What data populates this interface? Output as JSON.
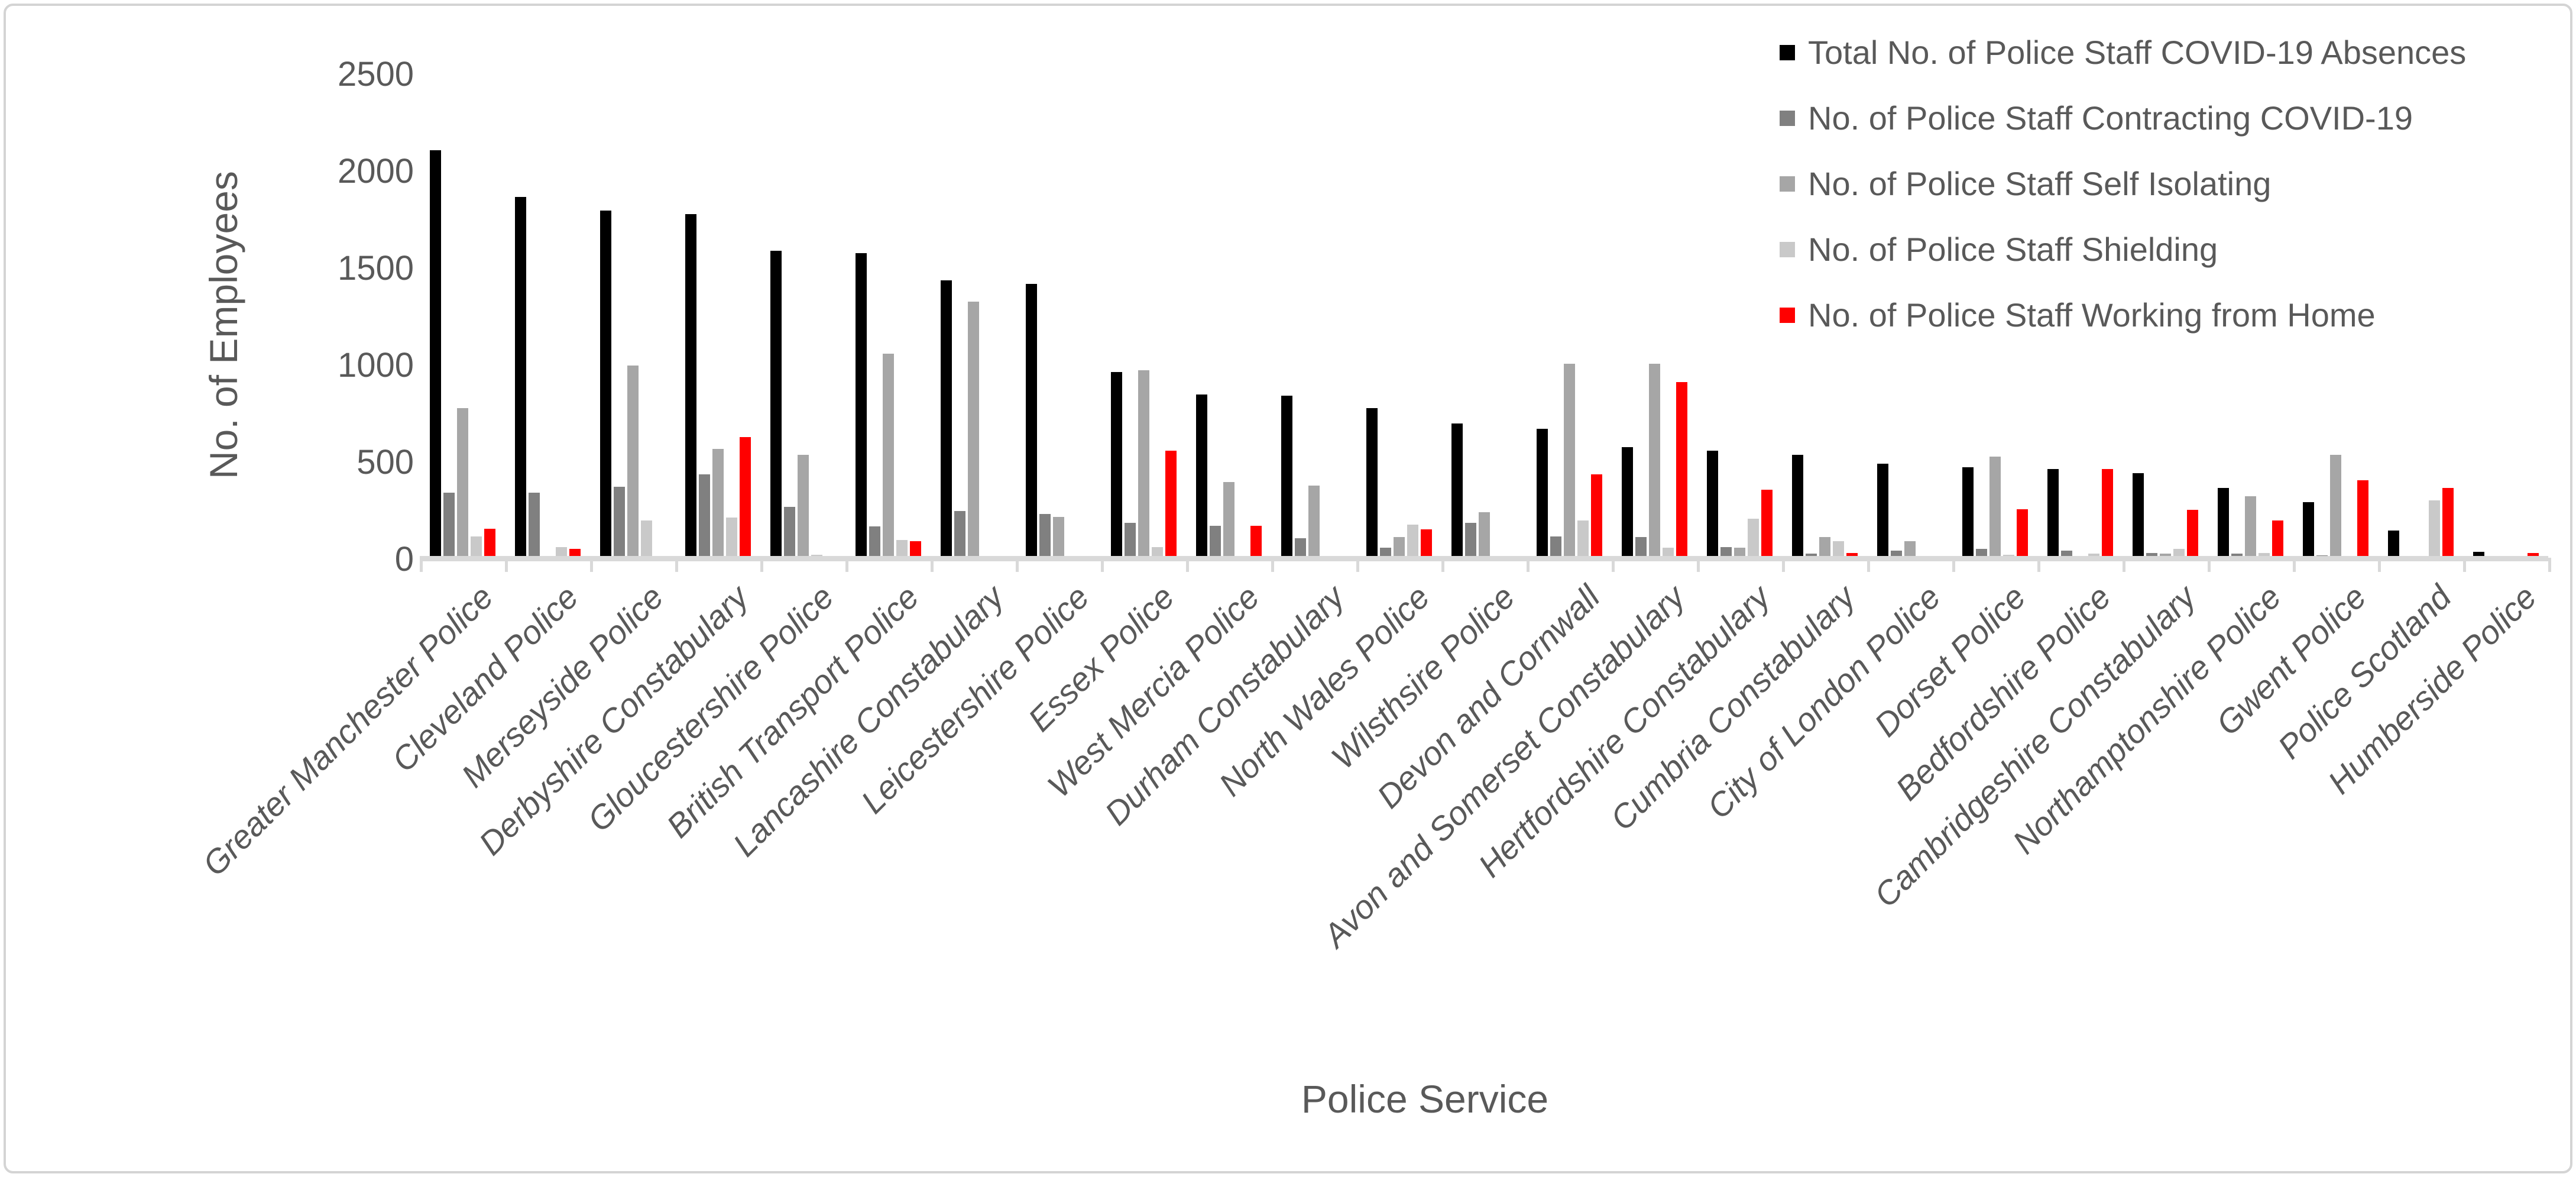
{
  "chart_data": {
    "type": "bar",
    "title": "",
    "xlabel": "Police Service",
    "ylabel": "No. of Employees",
    "ylim": [
      0,
      2500
    ],
    "yticks": [
      0,
      500,
      1000,
      1500,
      2000,
      2500
    ],
    "grid": false,
    "legend_position": "top-right",
    "xticklabel_rotation": 45,
    "categories": [
      "Greater Manchester Police",
      "Cleveland Police",
      "Merseyside Police",
      "Derbyshire Constabulary",
      "Gloucestershire Police",
      "British Transport Police",
      "Lancashire Constabulary",
      "Leicestershire Police",
      "Essex Police",
      "West Mercia Police",
      "Durham Constabulary",
      "North Wales Police",
      "Wilsthsire Police",
      "Devon and Cornwall",
      "Avon and Somerset Constabulary",
      "Hertfordshire Constabulary",
      "Cumbria Constabulary",
      "City of London Police",
      "Dorset Police",
      "Bedfordshire Police",
      "Cambridgeshire Constabulary",
      "Northamptonshire Police",
      "Gwent Police",
      "Police Scotland",
      "Humberside Police"
    ],
    "series": [
      {
        "name": "Total No. of Police Staff COVID-19 Absences",
        "color": "#000000",
        "values": [
          2110,
          1870,
          1800,
          1780,
          1590,
          1580,
          1440,
          1420,
          965,
          850,
          845,
          780,
          700,
          675,
          580,
          560,
          540,
          495,
          475,
          465,
          445,
          370,
          295,
          150,
          40
        ]
      },
      {
        "name": "No. of Police Staff Contracting COVID-19",
        "color": "#808080",
        "values": [
          345,
          345,
          375,
          440,
          270,
          170,
          250,
          235,
          190,
          175,
          110,
          60,
          190,
          120,
          115,
          65,
          30,
          45,
          55,
          45,
          35,
          30,
          20,
          0,
          0
        ]
      },
      {
        "name": "No. of Police Staff Self Isolating",
        "color": "#A6A6A6",
        "values": [
          780,
          0,
          1000,
          570,
          540,
          1060,
          1330,
          220,
          975,
          400,
          380,
          115,
          245,
          1010,
          1010,
          60,
          115,
          95,
          530,
          0,
          30,
          325,
          540,
          0,
          0
        ]
      },
      {
        "name": "No. of Police Staff Shielding",
        "color": "#C9C9C9",
        "values": [
          120,
          65,
          200,
          215,
          25,
          100,
          0,
          0,
          65,
          15,
          0,
          180,
          0,
          200,
          60,
          210,
          95,
          0,
          25,
          30,
          55,
          35,
          0,
          305,
          10
        ]
      },
      {
        "name": "No. of Police Staff Working from Home",
        "color": "#FF0000",
        "values": [
          160,
          55,
          0,
          630,
          0,
          95,
          0,
          0,
          560,
          175,
          0,
          155,
          0,
          440,
          915,
          360,
          35,
          0,
          260,
          465,
          255,
          200,
          410,
          370,
          35
        ]
      }
    ]
  }
}
